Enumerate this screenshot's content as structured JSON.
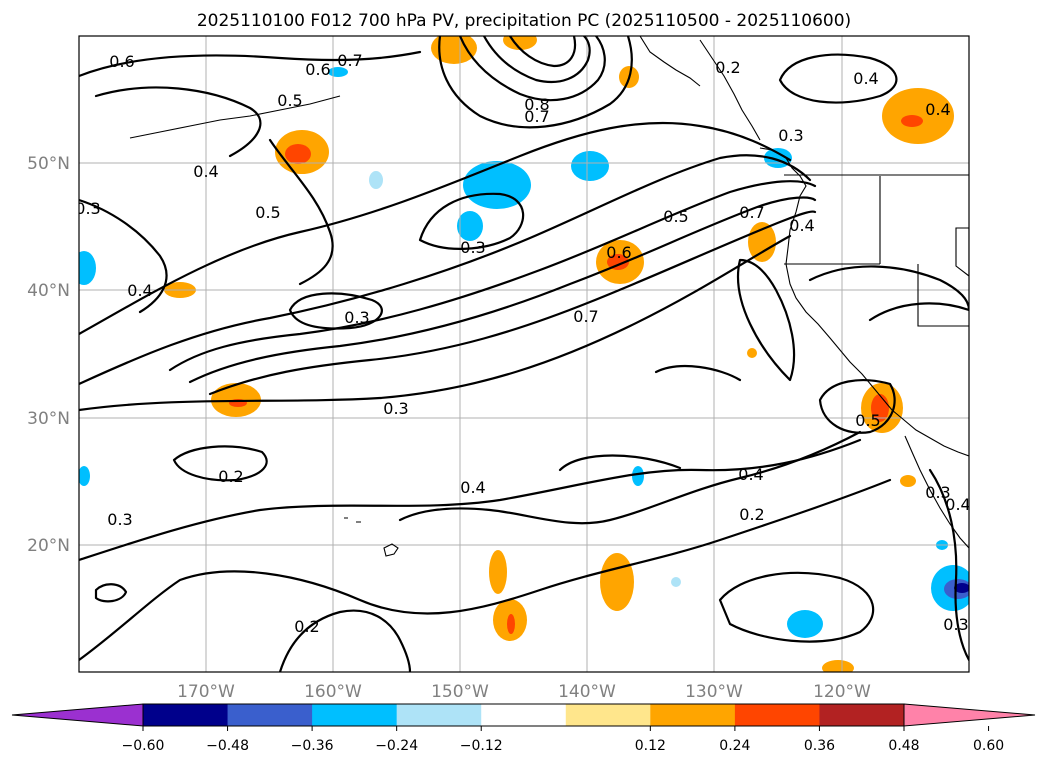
{
  "title": "2025110100 F012 700 hPa PV, precipitation PC (2025110500 - 2025110600)",
  "axes": {
    "lon_labels": [
      "170°W",
      "160°W",
      "150°W",
      "140°W",
      "130°W",
      "120°W"
    ],
    "lat_labels": [
      "50°N",
      "40°N",
      "30°N",
      "20°N"
    ]
  },
  "colorbar": {
    "ticks": [
      "−0.60",
      "−0.48",
      "−0.36",
      "−0.24",
      "−0.12",
      "0.12",
      "0.24",
      "0.36",
      "0.48",
      "0.60"
    ],
    "colors": [
      "#9b30d0",
      "#00008b",
      "#3a5fcd",
      "#00bfff",
      "#aee3f7",
      "#ffffff",
      "#ffe68c",
      "#ffa500",
      "#ff4500",
      "#b22222",
      "#ff82a9"
    ]
  },
  "contour_labels": [
    "0.6",
    "0.6",
    "0.7",
    "0.5",
    "0.8",
    "0.7",
    "0.2",
    "0.4",
    "0.4",
    "0.3",
    "0.4",
    "0.5",
    "0.3",
    "0.5",
    "0.6",
    "0.7",
    "0.4",
    "0.3",
    "0.4",
    "0.3",
    "0.7",
    "0.3",
    "0.2",
    "0.4",
    "0.4",
    "0.2",
    "0.3",
    "0.5",
    "0.3",
    "0.4",
    "0.2",
    "0.3"
  ]
}
